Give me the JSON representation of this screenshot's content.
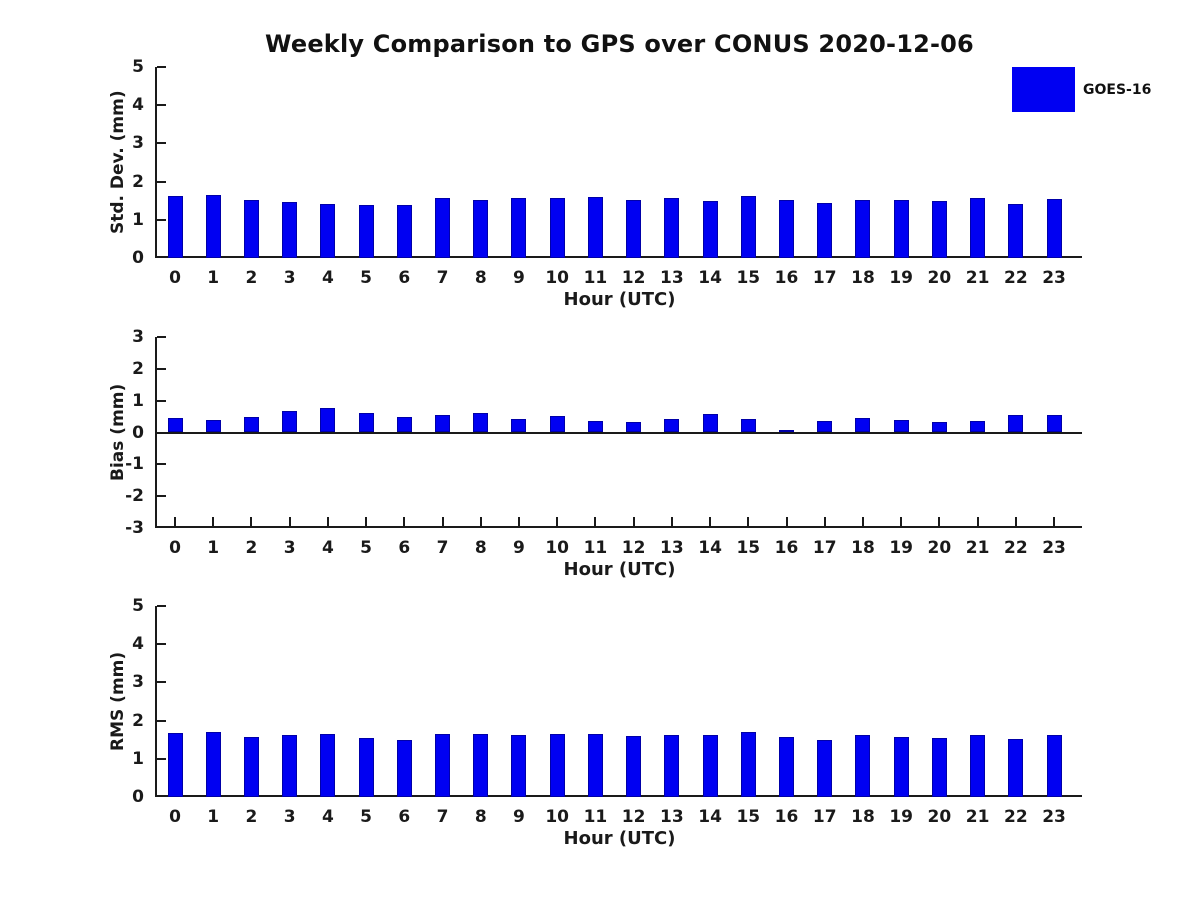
{
  "title": "Weekly Comparison to GPS over CONUS 2020-12-06",
  "legend": {
    "label": "GOES-16",
    "color": "#0000f2",
    "position": "top-right"
  },
  "chart_data": [
    {
      "type": "bar",
      "panel": "std-dev",
      "ylabel": "Std. Dev. (mm)",
      "xlabel": "Hour (UTC)",
      "series_name": "GOES-16",
      "categories": [
        "0",
        "1",
        "2",
        "3",
        "4",
        "5",
        "6",
        "7",
        "8",
        "9",
        "10",
        "11",
        "12",
        "13",
        "14",
        "15",
        "16",
        "17",
        "18",
        "19",
        "20",
        "21",
        "22",
        "23"
      ],
      "values": [
        1.61,
        1.64,
        1.51,
        1.47,
        1.42,
        1.39,
        1.39,
        1.56,
        1.52,
        1.56,
        1.56,
        1.6,
        1.52,
        1.56,
        1.5,
        1.63,
        1.53,
        1.45,
        1.53,
        1.53,
        1.5,
        1.56,
        1.41,
        1.55
      ],
      "ylim": [
        0,
        5
      ],
      "yticks": [
        0,
        1,
        2,
        3,
        4,
        5
      ],
      "grid": false
    },
    {
      "type": "bar",
      "panel": "bias",
      "ylabel": "Bias (mm)",
      "xlabel": "Hour (UTC)",
      "series_name": "GOES-16",
      "categories": [
        "0",
        "1",
        "2",
        "3",
        "4",
        "5",
        "6",
        "7",
        "8",
        "9",
        "10",
        "11",
        "12",
        "13",
        "14",
        "15",
        "16",
        "17",
        "18",
        "19",
        "20",
        "21",
        "22",
        "23"
      ],
      "values": [
        0.47,
        0.38,
        0.5,
        0.66,
        0.78,
        0.62,
        0.5,
        0.55,
        0.62,
        0.42,
        0.51,
        0.36,
        0.33,
        0.41,
        0.58,
        0.41,
        0.08,
        0.35,
        0.45,
        0.38,
        0.33,
        0.36,
        0.54,
        0.54
      ],
      "ylim": [
        -3,
        3
      ],
      "yticks": [
        -3,
        -2,
        -1,
        0,
        1,
        2,
        3
      ],
      "grid": false
    },
    {
      "type": "bar",
      "panel": "rms",
      "ylabel": "RMS (mm)",
      "xlabel": "Hour (UTC)",
      "series_name": "GOES-16",
      "categories": [
        "0",
        "1",
        "2",
        "3",
        "4",
        "5",
        "6",
        "7",
        "8",
        "9",
        "10",
        "11",
        "12",
        "13",
        "14",
        "15",
        "16",
        "17",
        "18",
        "19",
        "20",
        "21",
        "22",
        "23"
      ],
      "values": [
        1.68,
        1.69,
        1.58,
        1.61,
        1.64,
        1.55,
        1.48,
        1.66,
        1.66,
        1.63,
        1.66,
        1.64,
        1.59,
        1.62,
        1.62,
        1.71,
        1.56,
        1.5,
        1.61,
        1.58,
        1.55,
        1.61,
        1.52,
        1.63
      ],
      "ylim": [
        0,
        5
      ],
      "yticks": [
        0,
        1,
        2,
        3,
        4,
        5
      ],
      "grid": false
    }
  ]
}
